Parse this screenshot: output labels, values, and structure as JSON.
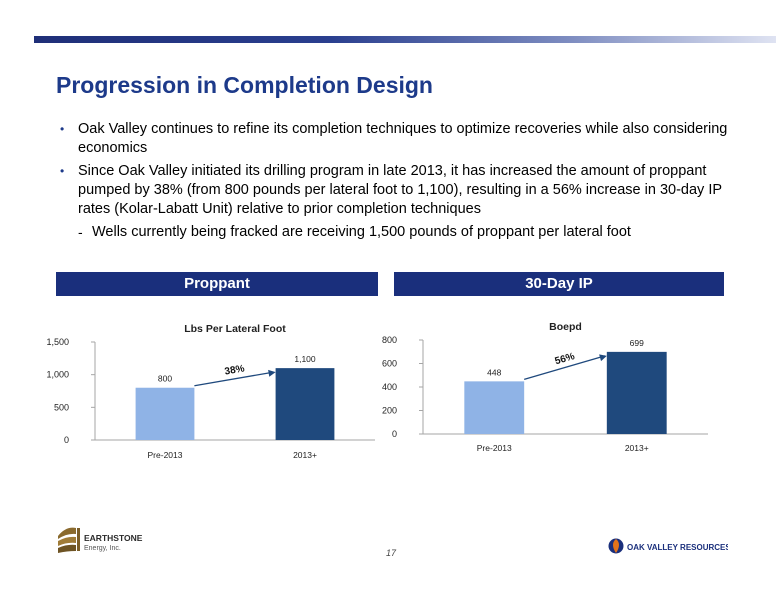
{
  "title": "Progression in Completion Design",
  "bullets": [
    "Oak Valley continues to refine its completion techniques to optimize recoveries while also considering economics",
    "Since Oak Valley initiated its drilling program in late 2013, it has increased the amount of proppant pumped by 38% (from 800 pounds per lateral foot to 1,100), resulting in a 56% increase in 30-day IP rates (Kolar-Labatt Unit) relative to prior completion techniques"
  ],
  "sub_bullet": "Wells currently being fracked are receiving 1,500 pounds of proppant per lateral foot",
  "bullet_marker": "•",
  "sub_marker": "-",
  "banners": {
    "left": "Proppant",
    "right": "30-Day IP"
  },
  "chart_data": [
    {
      "type": "bar",
      "title": "Lbs Per Lateral Foot",
      "categories": [
        "Pre-2013",
        "2013+"
      ],
      "values": [
        800,
        1100
      ],
      "value_labels": [
        "800",
        "1,100"
      ],
      "ylim": [
        0,
        1500
      ],
      "yticks": [
        0,
        500,
        1000,
        1500
      ],
      "ytick_labels": [
        "0",
        "500",
        "1,000",
        "1,500"
      ],
      "colors": [
        "#8fb3e6",
        "#1f497d"
      ],
      "arrow_label": "38%",
      "grid": false
    },
    {
      "type": "bar",
      "title": "Boepd",
      "categories": [
        "Pre-2013",
        "2013+"
      ],
      "values": [
        448,
        699
      ],
      "value_labels": [
        "448",
        "699"
      ],
      "ylim": [
        0,
        800
      ],
      "yticks": [
        0,
        200,
        400,
        600,
        800
      ],
      "ytick_labels": [
        "0",
        "200",
        "400",
        "600",
        "800"
      ],
      "colors": [
        "#8fb3e6",
        "#1f497d"
      ],
      "arrow_label": "56%",
      "grid": false
    }
  ],
  "footer": {
    "page_number": "17",
    "left_logo_text": "EARTHSTONE",
    "left_logo_sub": "Energy, Inc.",
    "right_logo_text": "OAK VALLEY RESOURCES",
    "brand_color": "#1a2f7c",
    "accent_color": "#e3731a"
  }
}
